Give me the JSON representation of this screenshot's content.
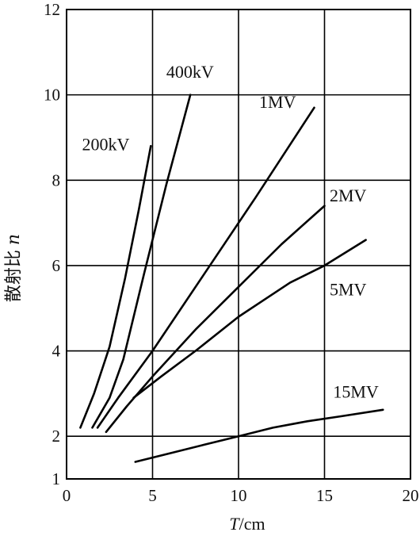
{
  "chart_data": {
    "type": "line",
    "xlabel": "T/cm",
    "xlabel_italic_part": "T",
    "xlabel_unit_part": "/cm",
    "ylabel": "散射比 n",
    "ylabel_text_part": "散射比",
    "ylabel_symbol_part": "n",
    "xlim": [
      0,
      20
    ],
    "ylim": [
      1,
      12
    ],
    "x_ticks": [
      {
        "value": 0,
        "label": "0"
      },
      {
        "value": 5,
        "label": "5"
      },
      {
        "value": 10,
        "label": "10"
      },
      {
        "value": 15,
        "label": "15"
      },
      {
        "value": 20,
        "label": "20"
      }
    ],
    "y_ticks": [
      {
        "value": 1,
        "label": "1"
      },
      {
        "value": 2,
        "label": "2"
      },
      {
        "value": 4,
        "label": "4"
      },
      {
        "value": 6,
        "label": "6"
      },
      {
        "value": 8,
        "label": "8"
      },
      {
        "value": 10,
        "label": "10"
      },
      {
        "value": 12,
        "label": "12"
      }
    ],
    "grid": true,
    "legend": "none",
    "series": [
      {
        "name": "200kV",
        "x": [
          0.8,
          1.6,
          2.5,
          3.4,
          4.2,
          4.9
        ],
        "y": [
          2.2,
          3.0,
          4.1,
          5.7,
          7.3,
          8.8
        ]
      },
      {
        "name": "400kV",
        "x": [
          1.5,
          2.5,
          3.3,
          4.5,
          5.8,
          7.2
        ],
        "y": [
          2.2,
          2.9,
          3.8,
          5.8,
          7.9,
          10.0
        ]
      },
      {
        "name": "1MV",
        "x": [
          1.8,
          3.0,
          5.0,
          8.0,
          11.0,
          14.4
        ],
        "y": [
          2.2,
          2.9,
          4.0,
          5.8,
          7.6,
          9.7
        ]
      },
      {
        "name": "2MV",
        "x": [
          2.3,
          3.5,
          5.0,
          7.5,
          10.0,
          12.5,
          15.0
        ],
        "y": [
          2.1,
          2.7,
          3.4,
          4.5,
          5.5,
          6.5,
          7.4
        ]
      },
      {
        "name": "5MV",
        "x": [
          3.9,
          5.5,
          7.5,
          10.0,
          13.0,
          15.0,
          17.4
        ],
        "y": [
          2.9,
          3.4,
          4.0,
          4.8,
          5.6,
          6.0,
          6.6
        ]
      },
      {
        "name": "15MV",
        "x": [
          4.0,
          6.0,
          8.0,
          10.0,
          12.0,
          14.0,
          16.0,
          18.4
        ],
        "y": [
          1.4,
          1.6,
          1.8,
          2.0,
          2.2,
          2.35,
          2.47,
          2.62
        ]
      }
    ],
    "series_label_anchors": [
      {
        "name": "200kV",
        "x": 0.9,
        "y": 8.7
      },
      {
        "name": "400kV",
        "x": 5.8,
        "y": 10.4
      },
      {
        "name": "1MV",
        "x": 11.2,
        "y": 9.7
      },
      {
        "name": "2MV",
        "x": 15.3,
        "y": 7.5
      },
      {
        "name": "5MV",
        "x": 15.3,
        "y": 5.3
      },
      {
        "name": "15MV",
        "x": 15.5,
        "y": 2.9
      }
    ]
  }
}
